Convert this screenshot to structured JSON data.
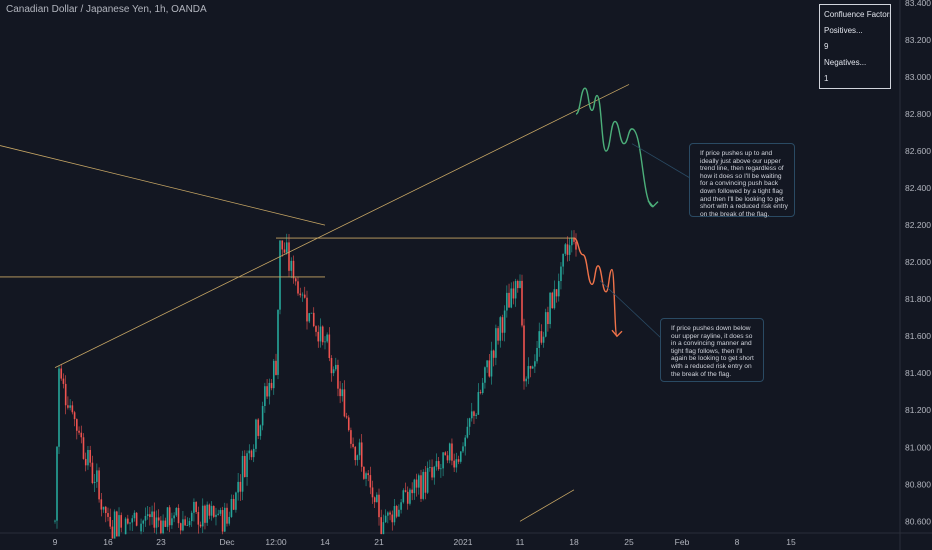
{
  "header": {
    "title": "Canadian Dollar / Japanese Yen, 1h, OANDA"
  },
  "confluence_box": {
    "title": "Confluence Factors...",
    "positives_label": "Positives...",
    "positives_count": "9",
    "negatives_label": "Negatives...",
    "negatives_count": "1"
  },
  "annotations": {
    "upper_note": "If price pushes up to and ideally just above our upper trend line, then regardless of how it does so I'll be waiting for a convincing push back down followed by a tight flag and then I'll be looking to get short with a reduced risk entry on the break of the flag.",
    "lower_note": "If price pushes down below our upper rayline, it does so in a convincing manner and tight flag follows, then I'll again be looking to get short with a reduced risk entry on the break of the flag."
  },
  "colors": {
    "background": "#131722",
    "bull_candle": "#26a69a",
    "bear_candle": "#ef5350",
    "trend_line": "#c8a765",
    "projection_up": "#4caf7a",
    "projection_down": "#f0734a",
    "axis_text": "#b2b5be"
  },
  "chart_data": {
    "type": "candlestick",
    "symbol": "CADJPY",
    "timeframe": "1h",
    "title": "Canadian Dollar / Japanese Yen, 1h, OANDA",
    "y_ticks": [
      "83.400",
      "83.200",
      "83.000",
      "82.800",
      "82.600",
      "82.400",
      "82.200",
      "82.000",
      "81.800",
      "81.600",
      "81.400",
      "81.200",
      "81.000",
      "80.800",
      "80.600"
    ],
    "x_ticks": [
      "9",
      "16",
      "23",
      "Dec",
      "12:00",
      "14",
      "21",
      "2021",
      "11",
      "18",
      "25",
      "Feb",
      "8",
      "15"
    ],
    "ylim": [
      80.58,
      83.4
    ],
    "grid": false,
    "price_path": [
      {
        "x": "9",
        "y": 80.6
      },
      {
        "x": "9",
        "y": 81.42
      },
      {
        "x": "16",
        "y": 80.6
      },
      {
        "x": "Dec",
        "y": 80.62
      },
      {
        "x": "12:00",
        "y": 81.45
      },
      {
        "x": "12:00",
        "y": 82.1
      },
      {
        "x": "14",
        "y": 81.55
      },
      {
        "x": "21",
        "y": 80.6
      },
      {
        "x": "2021",
        "y": 81.0
      },
      {
        "x": "11",
        "y": 81.98
      },
      {
        "x": "11",
        "y": 81.3
      },
      {
        "x": "18",
        "y": 82.17
      },
      {
        "x": "18",
        "y": 81.9
      }
    ],
    "trend_lines": [
      {
        "name": "upper trend line",
        "from": {
          "x": "9",
          "y": 81.43
        },
        "to": {
          "x": "25",
          "y": 82.96
        }
      },
      {
        "name": "upper rayline",
        "from": {
          "x": "12:00",
          "y": 82.13
        },
        "to": {
          "x": "18",
          "y": 82.13
        }
      },
      {
        "name": "descending line",
        "from": {
          "x": "start",
          "y": 82.63
        },
        "to": {
          "x": "14",
          "y": 82.2
        }
      },
      {
        "name": "horizontal line",
        "from": {
          "x": "start",
          "y": 81.92
        },
        "to": {
          "x": "14",
          "y": 81.92
        }
      },
      {
        "name": "lower trend line",
        "from": {
          "x": "11",
          "y": 80.6
        },
        "to": {
          "x": "18",
          "y": 80.77
        }
      }
    ],
    "projections": [
      {
        "name": "upper projection",
        "path_y": [
          82.8,
          82.94,
          82.82,
          82.9,
          82.6,
          82.76,
          82.64,
          82.72,
          82.3
        ]
      },
      {
        "name": "lower projection",
        "path_y": [
          82.13,
          82.04,
          81.88,
          81.98,
          81.84,
          81.96,
          81.6
        ]
      }
    ]
  }
}
